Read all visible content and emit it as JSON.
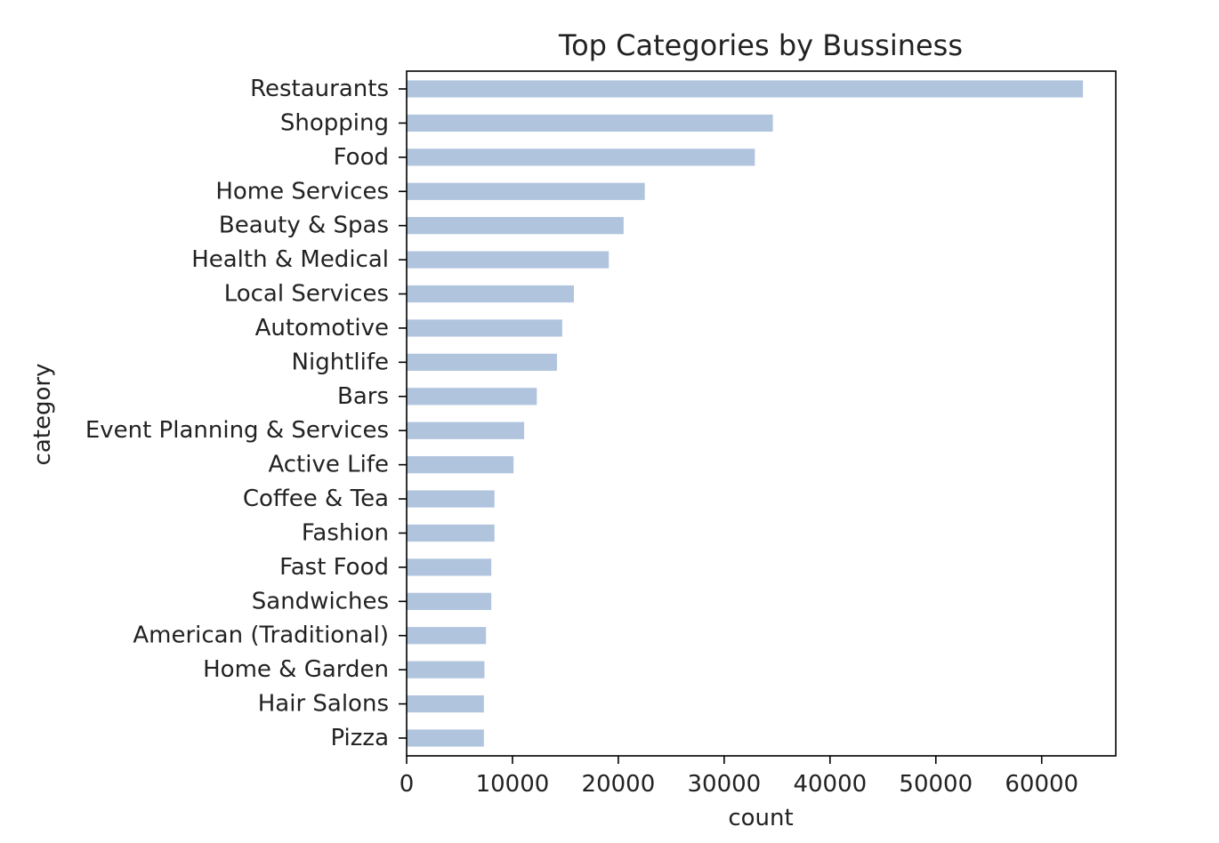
{
  "chart_data": {
    "type": "bar",
    "orientation": "horizontal",
    "title": "Top Categories by Bussiness",
    "xlabel": "count",
    "ylabel": "category",
    "bar_color": "#b0c4de",
    "xlim": [
      0,
      67000
    ],
    "xticks": [
      0,
      10000,
      20000,
      30000,
      40000,
      50000,
      60000
    ],
    "grid": false,
    "legend": "none",
    "categories": [
      "Restaurants",
      "Shopping",
      "Food",
      "Home Services",
      "Beauty & Spas",
      "Health & Medical",
      "Local Services",
      "Automotive",
      "Nightlife",
      "Bars",
      "Event Planning & Services",
      "Active Life",
      "Coffee & Tea",
      "Fashion",
      "Fast Food",
      "Sandwiches",
      "American (Traditional)",
      "Home & Garden",
      "Hair Salons",
      "Pizza"
    ],
    "values": [
      63900,
      34600,
      32900,
      22500,
      20500,
      19100,
      15800,
      14700,
      14200,
      12300,
      11100,
      10100,
      8300,
      8300,
      8000,
      8000,
      7500,
      7350,
      7300,
      7300
    ]
  }
}
